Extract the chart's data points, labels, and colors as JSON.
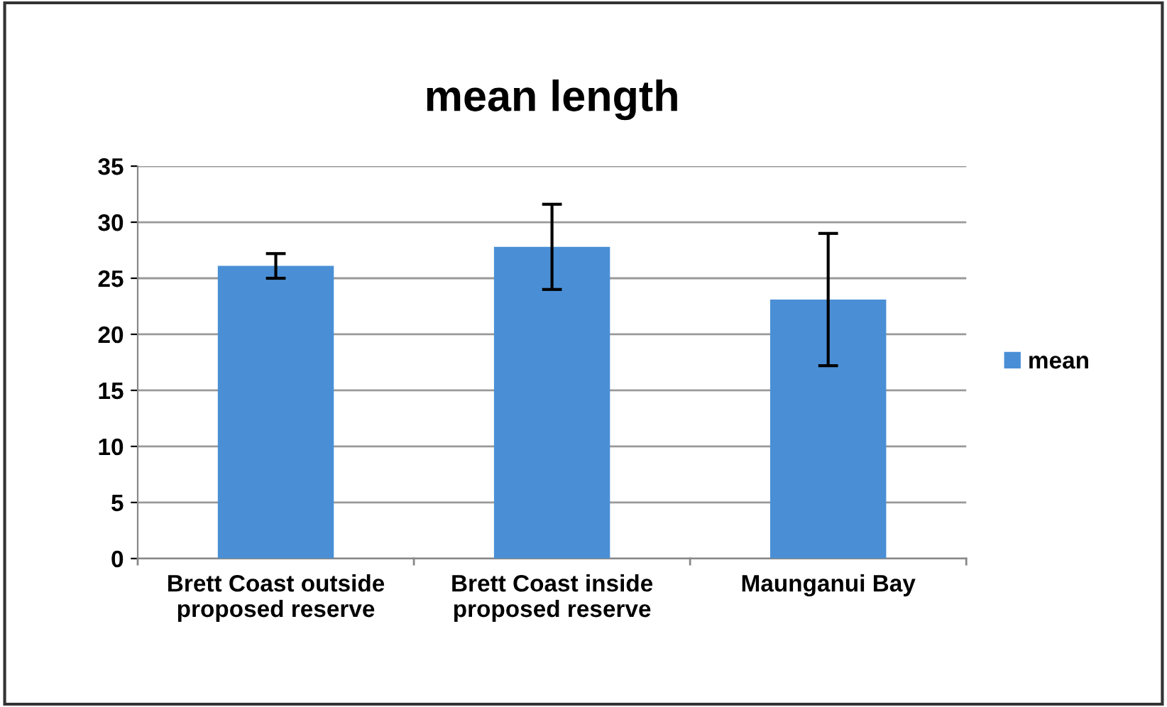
{
  "chart_data": {
    "type": "bar",
    "title": "mean length",
    "categories": [
      "Brett Coast outside\nproposed reserve",
      "Brett Coast inside\nproposed reserve",
      "Maunganui Bay"
    ],
    "series": [
      {
        "name": "mean",
        "color": "#4a8fd6",
        "values": [
          26.1,
          27.8,
          23.1
        ],
        "errors": [
          1.1,
          3.8,
          5.9
        ]
      }
    ],
    "ylim": [
      0,
      35
    ],
    "yticks": [
      0,
      5,
      10,
      15,
      20,
      25,
      30,
      35
    ],
    "grid": "y",
    "legend": "right"
  }
}
